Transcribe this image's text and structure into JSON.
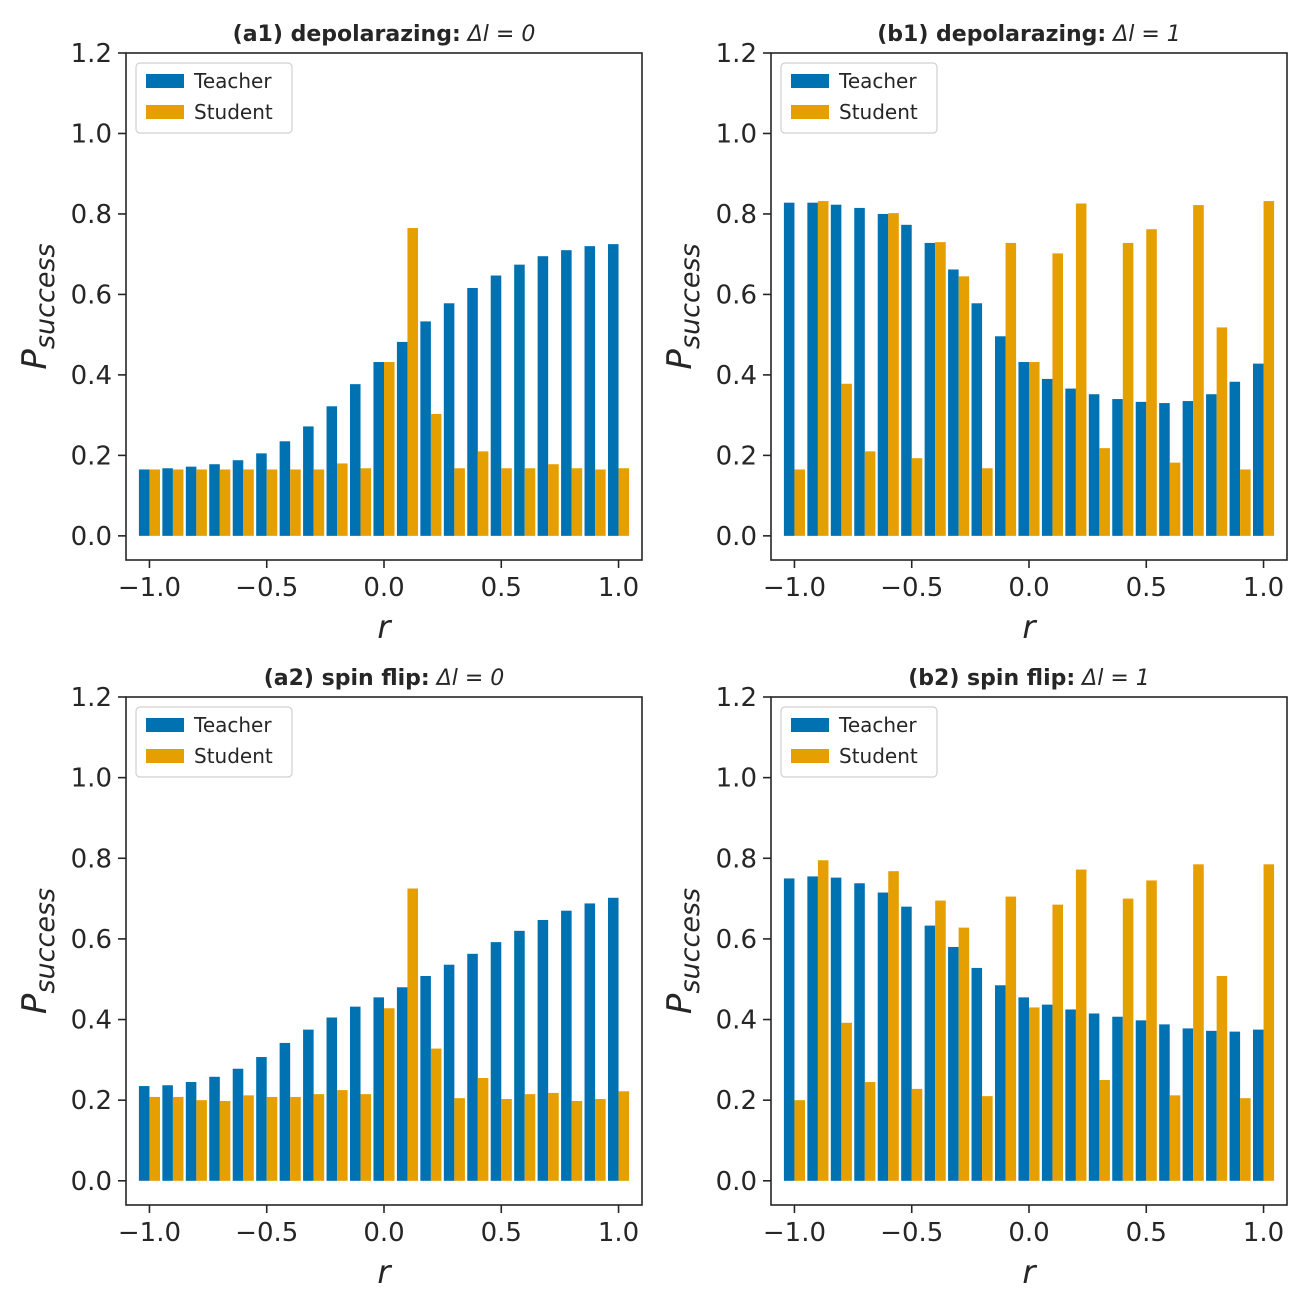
{
  "chart_data": [
    {
      "id": "a1",
      "type": "bar",
      "title_bold": "(a1) depolarazing:",
      "title_math": "Δl = 0",
      "xlabel": "r",
      "ylabel_base": "P",
      "ylabel_sub": "success",
      "xlim": [
        -1.1,
        1.1
      ],
      "ylim": [
        -0.06,
        1.2
      ],
      "xticks": [
        -1.0,
        -0.5,
        0.0,
        0.5,
        1.0
      ],
      "xtick_labels": [
        "−1.0",
        "−0.5",
        "0.0",
        "0.5",
        "1.0"
      ],
      "yticks": [
        0.0,
        0.2,
        0.4,
        0.6,
        0.8,
        1.0,
        1.2
      ],
      "ytick_labels": [
        "0.0",
        "0.2",
        "0.4",
        "0.6",
        "0.8",
        "1.0",
        "1.2"
      ],
      "legend": {
        "placement": "top-left",
        "entries": [
          "Teacher",
          "Student"
        ]
      },
      "x": [
        -1.0,
        -0.9,
        -0.8,
        -0.7,
        -0.6,
        -0.5,
        -0.4,
        -0.3,
        -0.2,
        -0.1,
        0.0,
        0.1,
        0.2,
        0.3,
        0.4,
        0.5,
        0.6,
        0.7,
        0.8,
        0.9,
        1.0
      ],
      "series": [
        {
          "name": "Teacher",
          "color": "#0072b2",
          "values": [
            0.165,
            0.168,
            0.172,
            0.178,
            0.188,
            0.205,
            0.235,
            0.272,
            0.322,
            0.377,
            0.432,
            0.482,
            0.533,
            0.578,
            0.616,
            0.647,
            0.674,
            0.695,
            0.71,
            0.72,
            0.725
          ]
        },
        {
          "name": "Student",
          "color": "#e69f00",
          "values": [
            0.165,
            0.165,
            0.165,
            0.165,
            0.165,
            0.165,
            0.165,
            0.165,
            0.18,
            0.168,
            0.432,
            0.765,
            0.303,
            0.168,
            0.21,
            0.168,
            0.168,
            0.178,
            0.168,
            0.165,
            0.168
          ]
        }
      ]
    },
    {
      "id": "b1",
      "type": "bar",
      "title_bold": "(b1) depolarazing:",
      "title_math": "Δl = 1",
      "xlabel": "r",
      "ylabel_base": "P",
      "ylabel_sub": "success",
      "xlim": [
        -1.1,
        1.1
      ],
      "ylim": [
        -0.06,
        1.2
      ],
      "xticks": [
        -1.0,
        -0.5,
        0.0,
        0.5,
        1.0
      ],
      "xtick_labels": [
        "−1.0",
        "−0.5",
        "0.0",
        "0.5",
        "1.0"
      ],
      "yticks": [
        0.0,
        0.2,
        0.4,
        0.6,
        0.8,
        1.0,
        1.2
      ],
      "ytick_labels": [
        "0.0",
        "0.2",
        "0.4",
        "0.6",
        "0.8",
        "1.0",
        "1.2"
      ],
      "legend": {
        "placement": "top-left",
        "entries": [
          "Teacher",
          "Student"
        ]
      },
      "x": [
        -1.0,
        -0.9,
        -0.8,
        -0.7,
        -0.6,
        -0.5,
        -0.4,
        -0.3,
        -0.2,
        -0.1,
        0.0,
        0.1,
        0.2,
        0.3,
        0.4,
        0.5,
        0.6,
        0.7,
        0.8,
        0.9,
        1.0
      ],
      "series": [
        {
          "name": "Teacher",
          "color": "#0072b2",
          "values": [
            0.828,
            0.828,
            0.823,
            0.815,
            0.8,
            0.773,
            0.728,
            0.662,
            0.578,
            0.496,
            0.432,
            0.39,
            0.366,
            0.352,
            0.34,
            0.333,
            0.33,
            0.335,
            0.352,
            0.383,
            0.428
          ]
        },
        {
          "name": "Student",
          "color": "#e69f00",
          "values": [
            0.165,
            0.832,
            0.378,
            0.21,
            0.802,
            0.193,
            0.73,
            0.645,
            0.168,
            0.728,
            0.432,
            0.702,
            0.826,
            0.218,
            0.728,
            0.762,
            0.182,
            0.822,
            0.518,
            0.165,
            0.832
          ]
        }
      ]
    },
    {
      "id": "a2",
      "type": "bar",
      "title_bold": "(a2) spin flip:",
      "title_math": "Δl = 0",
      "xlabel": "r",
      "ylabel_base": "P",
      "ylabel_sub": "success",
      "xlim": [
        -1.1,
        1.1
      ],
      "ylim": [
        -0.06,
        1.2
      ],
      "xticks": [
        -1.0,
        -0.5,
        0.0,
        0.5,
        1.0
      ],
      "xtick_labels": [
        "−1.0",
        "−0.5",
        "0.0",
        "0.5",
        "1.0"
      ],
      "yticks": [
        0.0,
        0.2,
        0.4,
        0.6,
        0.8,
        1.0,
        1.2
      ],
      "ytick_labels": [
        "0.0",
        "0.2",
        "0.4",
        "0.6",
        "0.8",
        "1.0",
        "1.2"
      ],
      "legend": {
        "placement": "top-left",
        "entries": [
          "Teacher",
          "Student"
        ]
      },
      "x": [
        -1.0,
        -0.9,
        -0.8,
        -0.7,
        -0.6,
        -0.5,
        -0.4,
        -0.3,
        -0.2,
        -0.1,
        0.0,
        0.1,
        0.2,
        0.3,
        0.4,
        0.5,
        0.6,
        0.7,
        0.8,
        0.9,
        1.0
      ],
      "series": [
        {
          "name": "Teacher",
          "color": "#0072b2",
          "values": [
            0.235,
            0.237,
            0.245,
            0.258,
            0.278,
            0.307,
            0.342,
            0.375,
            0.405,
            0.432,
            0.455,
            0.48,
            0.508,
            0.536,
            0.563,
            0.592,
            0.62,
            0.647,
            0.67,
            0.688,
            0.702
          ]
        },
        {
          "name": "Student",
          "color": "#e69f00",
          "values": [
            0.208,
            0.208,
            0.2,
            0.198,
            0.212,
            0.208,
            0.208,
            0.215,
            0.225,
            0.215,
            0.428,
            0.725,
            0.328,
            0.205,
            0.255,
            0.203,
            0.215,
            0.218,
            0.198,
            0.203,
            0.222
          ]
        }
      ]
    },
    {
      "id": "b2",
      "type": "bar",
      "title_bold": "(b2) spin flip:",
      "title_math": "Δl = 1",
      "xlabel": "r",
      "ylabel_base": "P",
      "ylabel_sub": "success",
      "xlim": [
        -1.1,
        1.1
      ],
      "ylim": [
        -0.06,
        1.2
      ],
      "xticks": [
        -1.0,
        -0.5,
        0.0,
        0.5,
        1.0
      ],
      "xtick_labels": [
        "−1.0",
        "−0.5",
        "0.0",
        "0.5",
        "1.0"
      ],
      "yticks": [
        0.0,
        0.2,
        0.4,
        0.6,
        0.8,
        1.0,
        1.2
      ],
      "ytick_labels": [
        "0.0",
        "0.2",
        "0.4",
        "0.6",
        "0.8",
        "1.0",
        "1.2"
      ],
      "legend": {
        "placement": "top-left",
        "entries": [
          "Teacher",
          "Student"
        ]
      },
      "x": [
        -1.0,
        -0.9,
        -0.8,
        -0.7,
        -0.6,
        -0.5,
        -0.4,
        -0.3,
        -0.2,
        -0.1,
        0.0,
        0.1,
        0.2,
        0.3,
        0.4,
        0.5,
        0.6,
        0.7,
        0.8,
        0.9,
        1.0
      ],
      "series": [
        {
          "name": "Teacher",
          "color": "#0072b2",
          "values": [
            0.75,
            0.755,
            0.752,
            0.738,
            0.715,
            0.68,
            0.633,
            0.58,
            0.528,
            0.485,
            0.455,
            0.437,
            0.425,
            0.415,
            0.407,
            0.398,
            0.388,
            0.378,
            0.372,
            0.37,
            0.375
          ]
        },
        {
          "name": "Student",
          "color": "#e69f00",
          "values": [
            0.2,
            0.795,
            0.392,
            0.245,
            0.768,
            0.228,
            0.695,
            0.628,
            0.21,
            0.705,
            0.43,
            0.685,
            0.772,
            0.25,
            0.7,
            0.745,
            0.212,
            0.785,
            0.508,
            0.205,
            0.785
          ]
        }
      ]
    }
  ]
}
